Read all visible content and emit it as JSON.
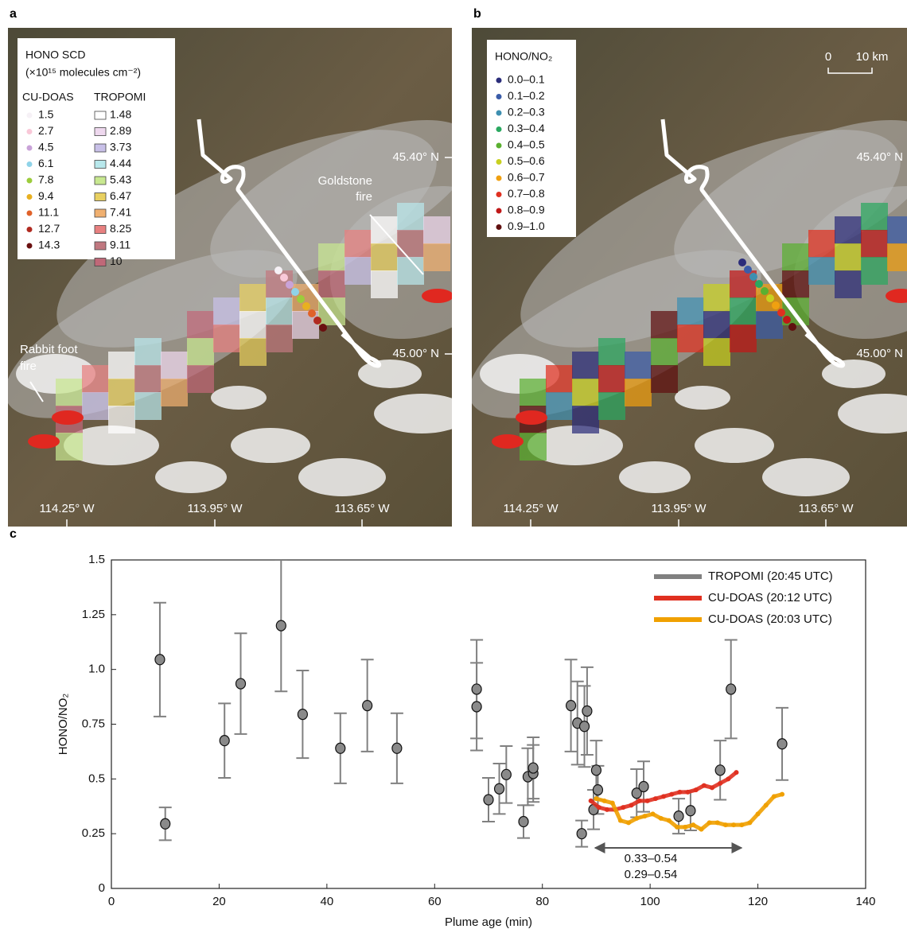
{
  "map_a": {
    "panel_label": "a",
    "legend_title": "HONO SCD",
    "legend_unit": "(×10¹⁵ molecules  cm⁻²)",
    "cu_doas_header": "CU-DOAS",
    "tropomi_header": "TROPOMI",
    "cu_doas_levels": [
      {
        "label": "1.5",
        "color": "#f6f1f6"
      },
      {
        "label": "2.7",
        "color": "#f9c8d8"
      },
      {
        "label": "4.5",
        "color": "#c9a3d8"
      },
      {
        "label": "6.1",
        "color": "#8fd3e8"
      },
      {
        "label": "7.8",
        "color": "#9ccc3c"
      },
      {
        "label": "9.4",
        "color": "#e8b020"
      },
      {
        "label": "11.1",
        "color": "#e0622a"
      },
      {
        "label": "12.7",
        "color": "#b02a20"
      },
      {
        "label": "14.3",
        "color": "#6a1010"
      }
    ],
    "tropomi_levels": [
      {
        "label": "1.48",
        "color": "#ffffff"
      },
      {
        "label": "2.89",
        "color": "#eed8ee"
      },
      {
        "label": "3.73",
        "color": "#c8c0e8"
      },
      {
        "label": "4.44",
        "color": "#b8e8ec"
      },
      {
        "label": "5.43",
        "color": "#c8e890"
      },
      {
        "label": "6.47",
        "color": "#e8d060"
      },
      {
        "label": "7.41",
        "color": "#f0b070"
      },
      {
        "label": "8.25",
        "color": "#e88080"
      },
      {
        "label": "9.11",
        "color": "#c07880"
      },
      {
        "label": "10",
        "color": "#c06878"
      }
    ],
    "goldstone_label": [
      "Goldstone",
      "fire"
    ],
    "rabbit_label": [
      "Rabbit foot",
      "fire"
    ],
    "lat_labels": [
      "45.40° N",
      "45.00° N"
    ],
    "lon_labels": [
      "114.25° W",
      "113.95° W",
      "113.65° W"
    ]
  },
  "map_b": {
    "panel_label": "b",
    "legend_title": "HONO/NO₂",
    "classes": [
      {
        "label": "0.0–0.1",
        "color": "#2b2d7a"
      },
      {
        "label": "0.1–0.2",
        "color": "#3a5ca8"
      },
      {
        "label": "0.2–0.3",
        "color": "#3e8fb0"
      },
      {
        "label": "0.3–0.4",
        "color": "#2aa860"
      },
      {
        "label": "0.4–0.5",
        "color": "#5ab030"
      },
      {
        "label": "0.5–0.6",
        "color": "#c8d020"
      },
      {
        "label": "0.6–0.7",
        "color": "#f0a010"
      },
      {
        "label": "0.7–0.8",
        "color": "#e03020"
      },
      {
        "label": "0.8–0.9",
        "color": "#c01818"
      },
      {
        "label": "0.9–1.0",
        "color": "#601010"
      }
    ],
    "scale_labels": [
      "0",
      "10 km"
    ],
    "lat_labels": [
      "45.40° N",
      "45.00° N"
    ],
    "lon_labels": [
      "114.25° W",
      "113.95° W",
      "113.65° W"
    ]
  },
  "chart_data": {
    "type": "scatter",
    "panel_label": "c",
    "xlabel": "Plume age (min)",
    "ylabel": "HONO/NO₂",
    "xlim": [
      0,
      140
    ],
    "xticks": [
      0,
      20,
      40,
      60,
      80,
      100,
      120,
      140
    ],
    "ylim": [
      0,
      1.5
    ],
    "yticks": [
      0,
      0.25,
      0.5,
      0.75,
      {
        "value": 1,
        "label": "1.0"
      },
      1.25,
      1.5
    ],
    "legend": "upper right",
    "series": [
      {
        "name": "TROPOMI (20:45 UTC)",
        "color": "#808080",
        "x": [
          9,
          10,
          21,
          24,
          31.5,
          35.5,
          42.5,
          47.5,
          53,
          67.8,
          67.8,
          70,
          72,
          73.3,
          76.5,
          77.3,
          78.3,
          78.3,
          85.3,
          86.5,
          87.3,
          87.8,
          88.3,
          89.5,
          90,
          90.3,
          97.5,
          98.8,
          105.3,
          107.5,
          113,
          115,
          124.5
        ],
        "values": [
          1.045,
          0.295,
          0.675,
          0.935,
          1.2,
          0.795,
          0.64,
          0.835,
          0.64,
          0.91,
          0.83,
          0.405,
          0.455,
          0.52,
          0.305,
          0.51,
          0.525,
          0.55,
          0.835,
          0.755,
          0.25,
          0.74,
          0.81,
          0.36,
          0.54,
          0.45,
          0.435,
          0.465,
          0.33,
          0.355,
          0.54,
          0.91,
          0.66
        ],
        "errors": [
          0.26,
          0.075,
          0.17,
          0.23,
          0.3,
          0.2,
          0.16,
          0.21,
          0.16,
          0.225,
          0.2,
          0.1,
          0.115,
          0.13,
          0.075,
          0.13,
          0.13,
          0.14,
          0.21,
          0.19,
          0.06,
          0.185,
          0.2,
          0.09,
          0.135,
          0.11,
          0.11,
          0.115,
          0.08,
          0.09,
          0.135,
          0.225,
          0.165
        ]
      },
      {
        "name": "CU-DOAS (20:12 UTC)",
        "color": "#e03020",
        "x": [
          89,
          90.5,
          92,
          93.5,
          95,
          96.5,
          98,
          99.5,
          101,
          102.5,
          104,
          105.5,
          107,
          108.5,
          110,
          111.5,
          113,
          114.5,
          116
        ],
        "values": [
          0.4,
          0.37,
          0.36,
          0.36,
          0.37,
          0.38,
          0.4,
          0.4,
          0.41,
          0.42,
          0.43,
          0.44,
          0.44,
          0.45,
          0.47,
          0.46,
          0.48,
          0.5,
          0.53
        ]
      },
      {
        "name": "CU-DOAS (20:03 UTC)",
        "color": "#f0a000",
        "x": [
          90,
          91.5,
          93,
          94.5,
          96,
          97.5,
          99,
          100.5,
          102,
          103.5,
          105,
          106.5,
          108,
          109.5,
          111,
          112.5,
          114,
          115.5,
          117,
          118.5,
          120,
          121.5,
          123,
          124.5
        ],
        "values": [
          0.41,
          0.4,
          0.39,
          0.31,
          0.3,
          0.32,
          0.33,
          0.34,
          0.32,
          0.31,
          0.28,
          0.28,
          0.29,
          0.27,
          0.3,
          0.3,
          0.29,
          0.29,
          0.29,
          0.3,
          0.34,
          0.38,
          0.42,
          0.43
        ]
      }
    ],
    "annotations": [
      {
        "text": "0.33–0.54",
        "color": "#999999"
      },
      {
        "text": "0.29–0.54",
        "color": "#e03020"
      }
    ]
  }
}
